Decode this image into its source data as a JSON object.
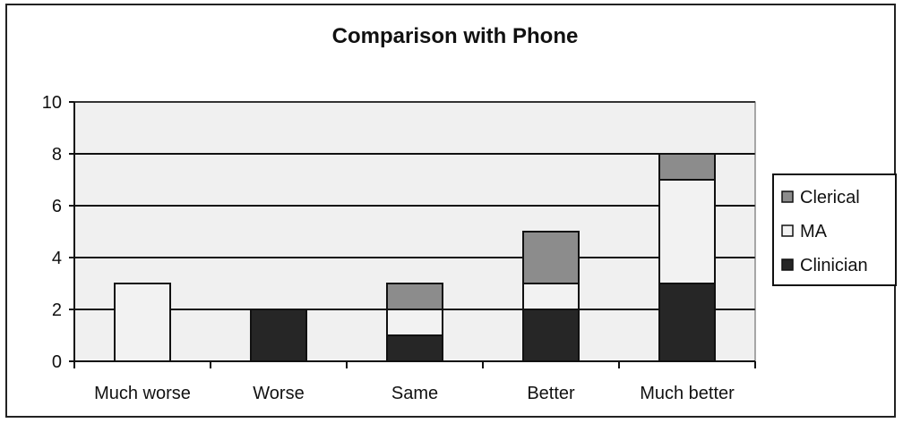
{
  "chart_data": {
    "type": "bar",
    "stacked": true,
    "title": "Comparison with Phone",
    "xlabel": "",
    "ylabel": "",
    "ylim": [
      0,
      10
    ],
    "yticks": [
      0,
      2,
      4,
      6,
      8,
      10
    ],
    "grid": true,
    "legend_position": "right",
    "categories": [
      "Much worse",
      "Worse",
      "Same",
      "Better",
      "Much better"
    ],
    "series": [
      {
        "name": "Clinician",
        "values": [
          0,
          2,
          1,
          2,
          3
        ],
        "color": "#262626"
      },
      {
        "name": "MA",
        "values": [
          3,
          0,
          1,
          1,
          4
        ],
        "color": "#f2f2f2"
      },
      {
        "name": "Clerical",
        "values": [
          0,
          0,
          1,
          2,
          1
        ],
        "color": "#8c8c8c"
      }
    ],
    "legend_order": [
      "Clerical",
      "MA",
      "Clinician"
    ],
    "plot_background": "#f0f0f0"
  }
}
